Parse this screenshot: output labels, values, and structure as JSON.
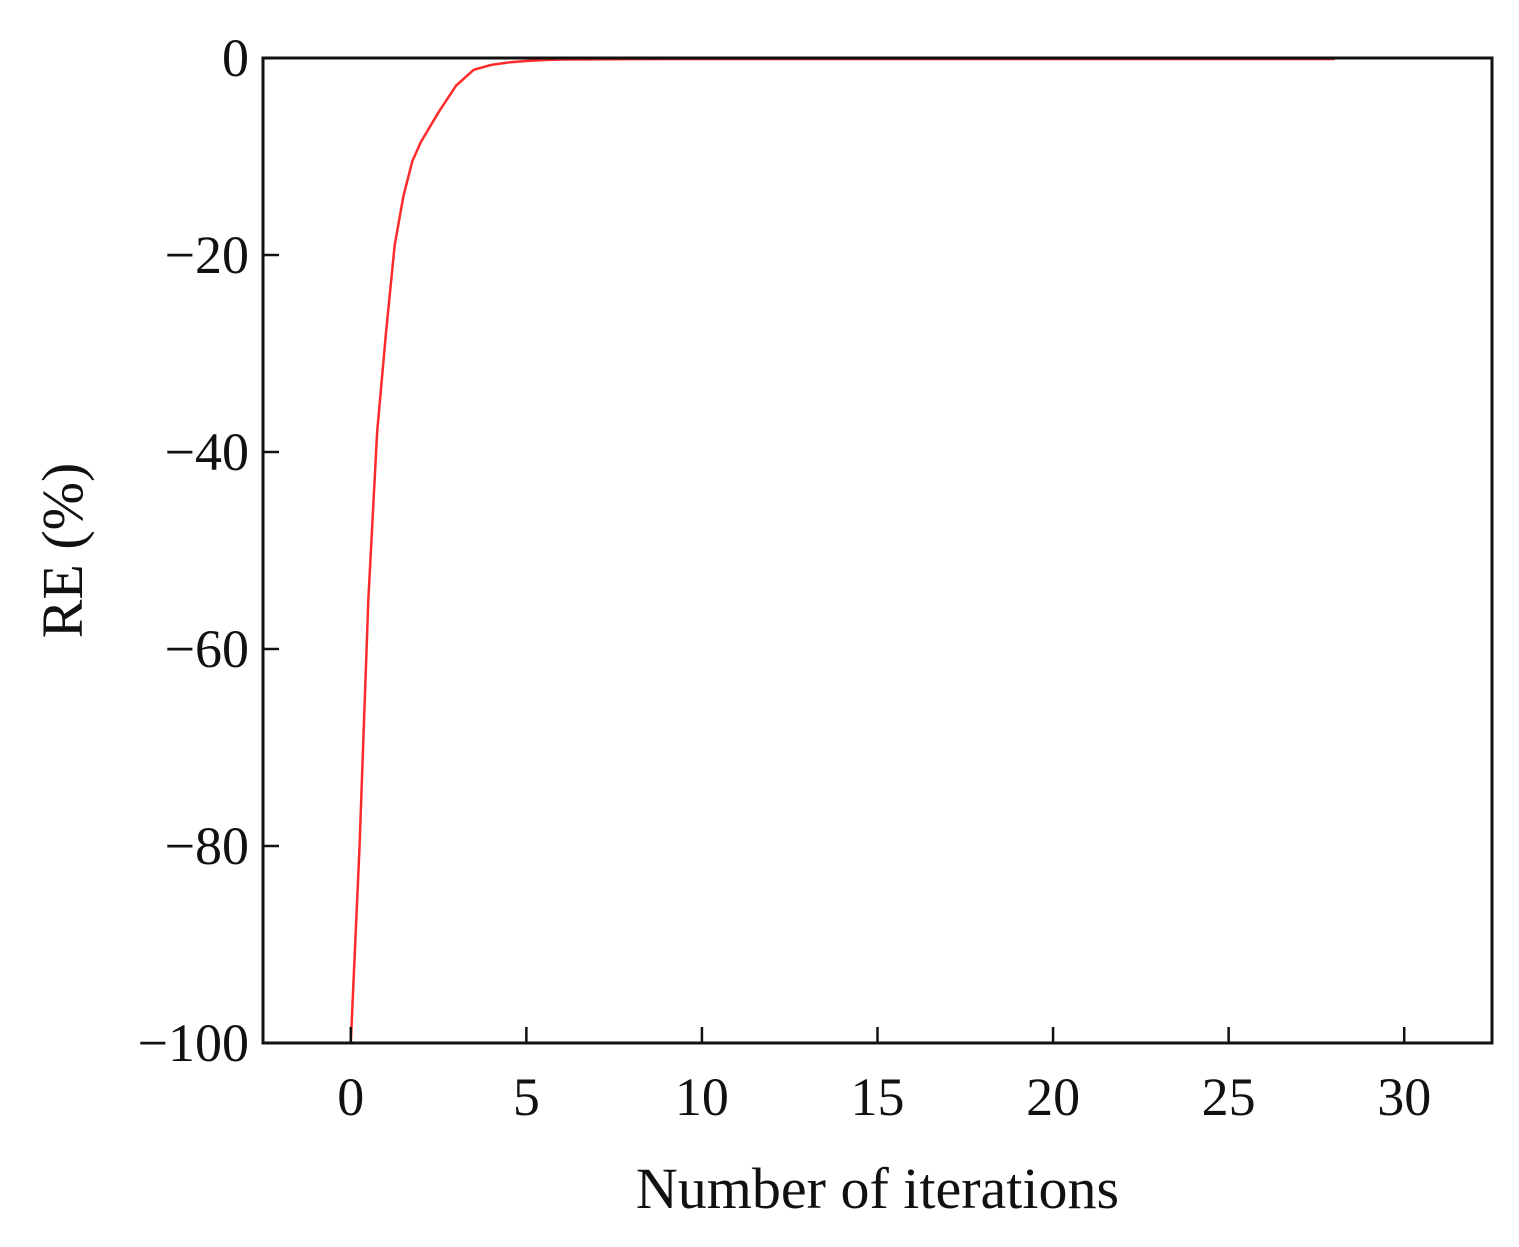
{
  "chart_data": {
    "type": "line",
    "title": "",
    "xlabel": "Number of iterations",
    "ylabel": "RE (%)",
    "xlim": [
      -2.5,
      32.5
    ],
    "ylim": [
      -100,
      0
    ],
    "x_ticks": [
      0,
      5,
      10,
      15,
      20,
      25,
      30
    ],
    "y_ticks": [
      0,
      -20,
      -40,
      -60,
      -80,
      -100
    ],
    "x_tick_labels": [
      "0",
      "5",
      "10",
      "15",
      "20",
      "25",
      "30"
    ],
    "y_tick_labels": [
      "0",
      "−20",
      "−40",
      "−60",
      "−80",
      "−100"
    ],
    "grid": false,
    "legend": "none",
    "series": [
      {
        "color": "#ff2a2a",
        "x": [
          0,
          0.25,
          0.5,
          0.75,
          1.0,
          1.25,
          1.5,
          1.75,
          2.0,
          2.5,
          3.0,
          3.5,
          4.0,
          4.5,
          5.0,
          5.5,
          6,
          8,
          10,
          15,
          20,
          25,
          28
        ],
        "y": [
          -100,
          -80,
          -55,
          -38,
          -28,
          -19,
          -14,
          -10.5,
          -8.5,
          -5.5,
          -2.8,
          -1.2,
          -0.7,
          -0.45,
          -0.3,
          -0.2,
          -0.15,
          -0.12,
          -0.1,
          -0.1,
          -0.1,
          -0.1,
          -0.1
        ]
      }
    ]
  }
}
